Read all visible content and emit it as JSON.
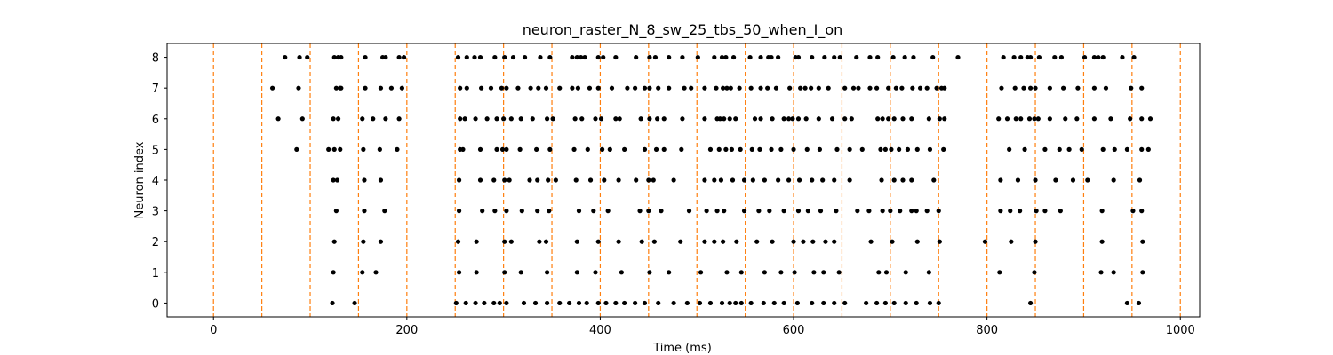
{
  "chart_data": {
    "type": "scatter",
    "title": "neuron_raster_N_8_sw_25_tbs_50_when_I_on",
    "xlabel": "Time (ms)",
    "ylabel": "Neuron index",
    "xlim": [
      -48,
      1020
    ],
    "ylim": [
      -0.45,
      8.45
    ],
    "xticks": [
      0,
      200,
      400,
      600,
      800,
      1000
    ],
    "yticks": [
      0,
      1,
      2,
      3,
      4,
      5,
      6,
      7,
      8
    ],
    "grid": false,
    "vlines": {
      "x": [
        0,
        50,
        100,
        150,
        200,
        250,
        300,
        350,
        400,
        450,
        500,
        550,
        600,
        650,
        700,
        750,
        800,
        850,
        900,
        950,
        1000
      ],
      "color": "#ff7f0e",
      "style": "dashed"
    },
    "marker_color": "#000000",
    "spikes": [
      {
        "neuron": 0,
        "times": [
          123,
          146,
          251,
          261,
          271,
          280,
          290,
          296,
          303,
          321,
          333,
          345,
          358,
          368,
          378,
          386,
          398,
          406,
          416,
          425,
          436,
          446,
          460,
          476,
          490,
          503,
          514,
          526,
          534,
          540,
          546,
          556,
          569,
          580,
          590,
          604,
          619,
          631,
          642,
          653,
          675,
          686,
          695,
          704,
          716,
          727,
          741,
          750,
          845,
          945,
          957
        ]
      },
      {
        "neuron": 1,
        "times": [
          124,
          154,
          168,
          254,
          272,
          301,
          318,
          345,
          376,
          395,
          422,
          451,
          471,
          504,
          531,
          546,
          570,
          587,
          601,
          621,
          631,
          647,
          688,
          696,
          716,
          740,
          813,
          849,
          918,
          931,
          961
        ]
      },
      {
        "neuron": 2,
        "times": [
          125,
          155,
          173,
          253,
          272,
          301,
          308,
          337,
          344,
          376,
          398,
          419,
          443,
          456,
          483,
          508,
          518,
          527,
          541,
          562,
          578,
          600,
          610,
          620,
          633,
          642,
          680,
          702,
          728,
          751,
          798,
          825,
          850,
          919,
          961
        ]
      },
      {
        "neuron": 3,
        "times": [
          127,
          156,
          177,
          254,
          278,
          291,
          303,
          319,
          335,
          347,
          378,
          393,
          408,
          441,
          450,
          463,
          492,
          510,
          521,
          528,
          549,
          564,
          575,
          590,
          605,
          615,
          628,
          644,
          666,
          678,
          692,
          700,
          710,
          722,
          727,
          738,
          750,
          814,
          824,
          834,
          851,
          860,
          876,
          919,
          951,
          960
        ]
      },
      {
        "neuron": 4,
        "times": [
          124,
          128,
          156,
          173,
          254,
          276,
          290,
          301,
          306,
          327,
          335,
          346,
          354,
          375,
          390,
          404,
          419,
          437,
          450,
          455,
          476,
          508,
          518,
          525,
          537,
          549,
          558,
          570,
          584,
          595,
          606,
          619,
          630,
          642,
          658,
          691,
          704,
          713,
          722,
          745,
          814,
          832,
          850,
          871,
          889,
          904,
          931,
          958
        ]
      },
      {
        "neuron": 5,
        "times": [
          86,
          119,
          125,
          131,
          155,
          172,
          190,
          255,
          258,
          276,
          293,
          299,
          303,
          317,
          334,
          348,
          373,
          387,
          402,
          410,
          425,
          446,
          458,
          466,
          484,
          514,
          523,
          530,
          536,
          545,
          557,
          565,
          577,
          587,
          600,
          614,
          627,
          645,
          658,
          671,
          690,
          695,
          701,
          709,
          718,
          728,
          741,
          755,
          823,
          839,
          860,
          875,
          885,
          898,
          920,
          932,
          945,
          960,
          967
        ]
      },
      {
        "neuron": 6,
        "times": [
          67,
          92,
          124,
          129,
          154,
          165,
          178,
          192,
          255,
          260,
          271,
          283,
          293,
          300,
          308,
          318,
          330,
          345,
          351,
          374,
          381,
          395,
          401,
          416,
          420,
          442,
          451,
          459,
          466,
          485,
          508,
          521,
          524,
          528,
          534,
          540,
          560,
          566,
          578,
          590,
          595,
          599,
          605,
          613,
          626,
          640,
          653,
          660,
          687,
          692,
          698,
          704,
          713,
          722,
          740,
          751,
          756,
          812,
          821,
          830,
          835,
          844,
          849,
          853,
          865,
          881,
          893,
          911,
          928,
          948,
          960,
          969
        ]
      },
      {
        "neuron": 7,
        "times": [
          61,
          88,
          127,
          131,
          132,
          157,
          173,
          184,
          195,
          255,
          262,
          277,
          287,
          298,
          303,
          315,
          328,
          336,
          344,
          358,
          371,
          377,
          389,
          398,
          412,
          428,
          436,
          446,
          451,
          460,
          471,
          487,
          494,
          508,
          520,
          527,
          531,
          535,
          544,
          556,
          566,
          573,
          582,
          596,
          607,
          612,
          618,
          626,
          636,
          653,
          662,
          667,
          679,
          686,
          698,
          706,
          712,
          723,
          731,
          738,
          748,
          753,
          756,
          815,
          829,
          838,
          845,
          850,
          865,
          879,
          894,
          911,
          923,
          949,
          960
        ]
      },
      {
        "neuron": 8,
        "times": [
          74,
          89,
          97,
          125,
          129,
          132,
          157,
          175,
          178,
          192,
          197,
          253,
          262,
          270,
          276,
          291,
          301,
          310,
          322,
          338,
          348,
          371,
          376,
          380,
          384,
          398,
          403,
          416,
          437,
          451,
          457,
          471,
          485,
          501,
          518,
          526,
          530,
          538,
          555,
          566,
          574,
          577,
          584,
          602,
          605,
          619,
          632,
          642,
          648,
          665,
          679,
          687,
          703,
          715,
          724,
          744,
          770,
          817,
          828,
          835,
          842,
          845,
          854,
          870,
          877,
          901,
          911,
          915,
          920,
          940,
          952
        ]
      }
    ]
  }
}
